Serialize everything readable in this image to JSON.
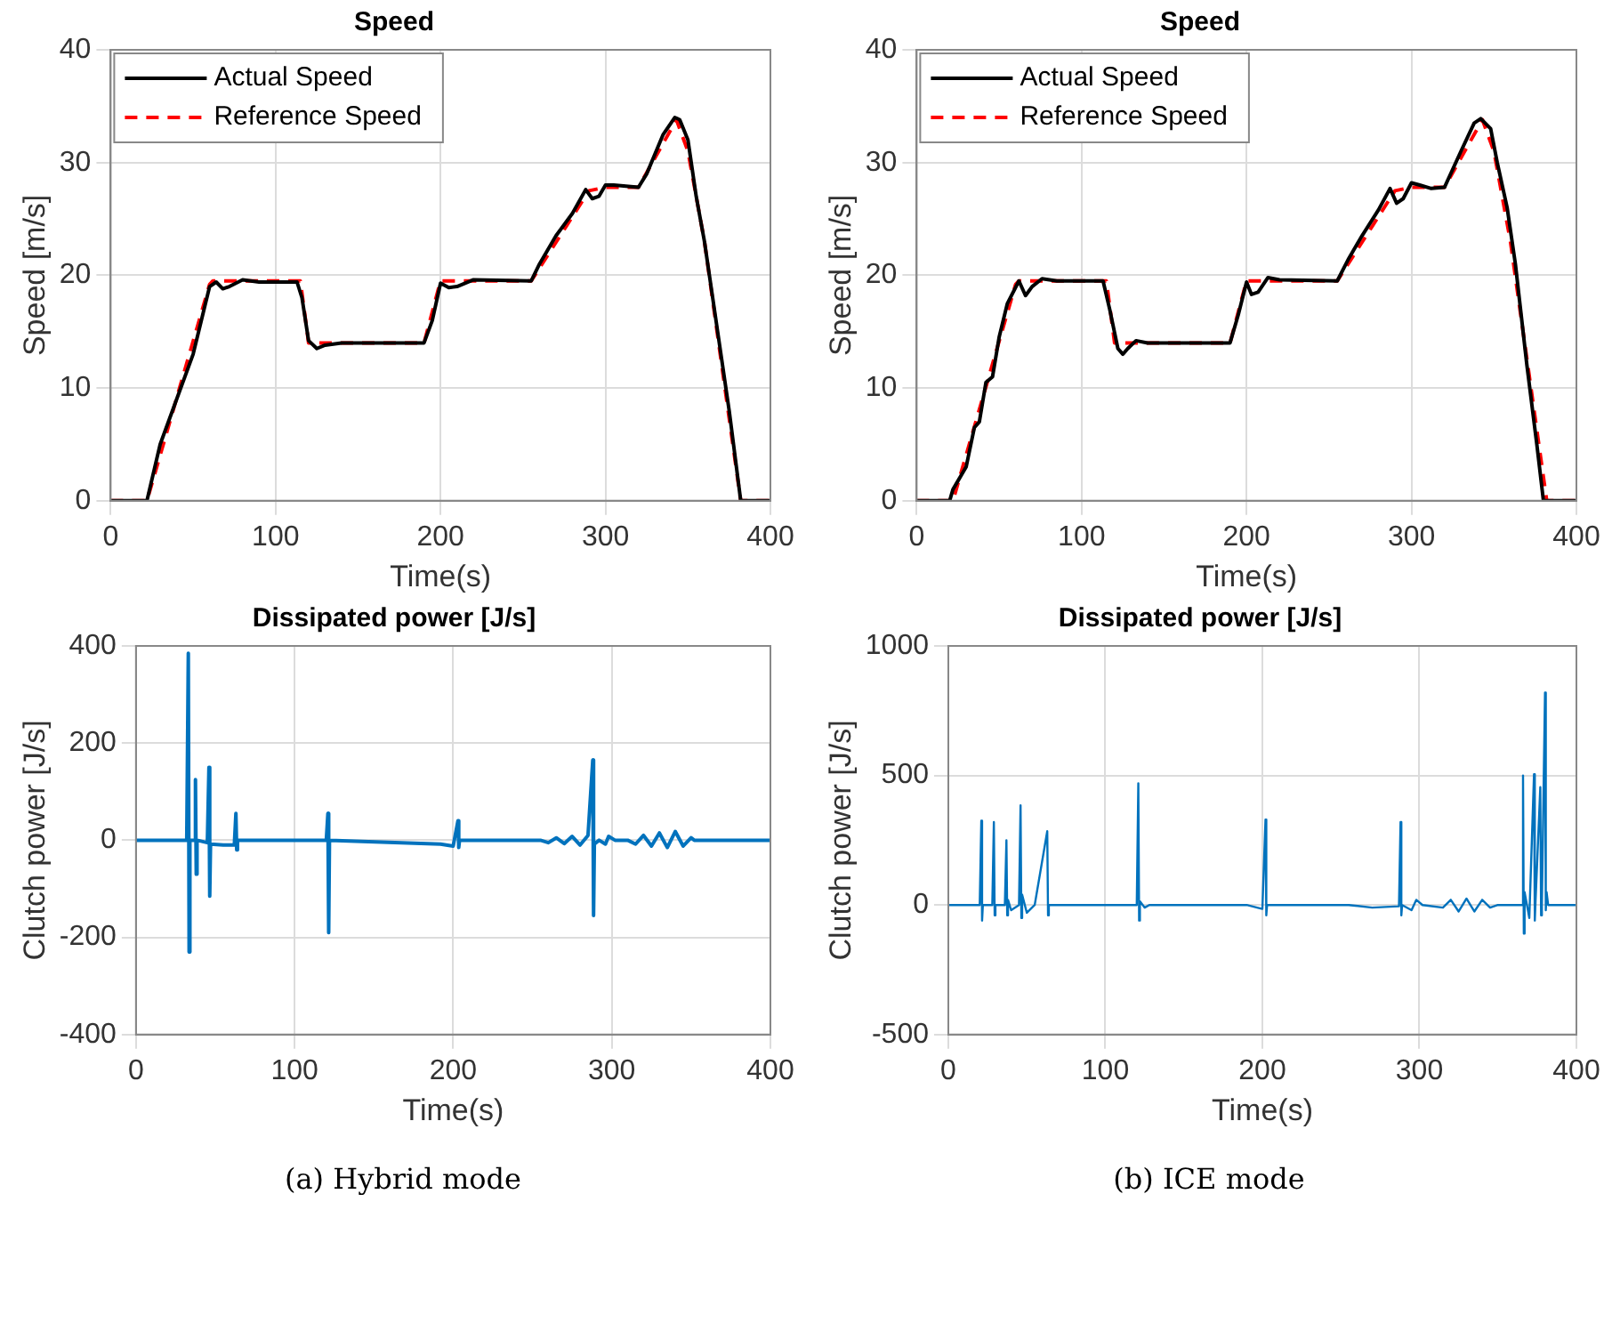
{
  "chart_data": [
    {
      "type": "line",
      "title": "Speed",
      "xlabel": "Time(s)",
      "ylabel": "Speed [m/s]",
      "xlim": [
        0,
        400
      ],
      "xticks": [
        0,
        100,
        200,
        300,
        400
      ],
      "ylim": [
        0,
        40
      ],
      "yticks": [
        0,
        10,
        20,
        30,
        40
      ],
      "grid": true,
      "legend": "top left",
      "series": [
        {
          "name": "Actual Speed",
          "color": "#000000",
          "line_style": "solid",
          "x": [
            0,
            20,
            22,
            30,
            40,
            50,
            55,
            60,
            64,
            68,
            72,
            80,
            90,
            113,
            116,
            120,
            125,
            130,
            140,
            190,
            195,
            200,
            205,
            210,
            220,
            255,
            260,
            270,
            280,
            288,
            292,
            296,
            300,
            305,
            320,
            325,
            335,
            342,
            345,
            350,
            355,
            360,
            365,
            375,
            382,
            400
          ],
          "values": [
            0,
            0,
            0,
            5,
            9,
            13,
            16,
            19,
            19.4,
            18.8,
            19,
            19.6,
            19.4,
            19.4,
            18,
            14.2,
            13.5,
            13.8,
            14,
            14,
            16,
            19.3,
            18.9,
            19,
            19.6,
            19.5,
            21,
            23.5,
            25.5,
            27.6,
            26.8,
            27,
            28,
            28,
            27.8,
            29,
            32.5,
            34,
            33.8,
            32,
            27,
            23,
            18,
            8,
            0,
            0
          ]
        },
        {
          "name": "Reference Speed",
          "color": "#ff0000",
          "line_style": "dashed",
          "x": [
            0,
            22,
            60,
            62,
            115,
            120,
            190,
            200,
            255,
            290,
            300,
            320,
            343,
            350,
            360,
            382,
            400
          ],
          "values": [
            0,
            0,
            19.2,
            19.5,
            19.5,
            14,
            14,
            19.5,
            19.5,
            27.5,
            27.8,
            27.8,
            33.8,
            31,
            23,
            0,
            0
          ]
        }
      ]
    },
    {
      "type": "line",
      "title": "Speed",
      "xlabel": "Time(s)",
      "ylabel": "Speed [m/s]",
      "xlim": [
        0,
        400
      ],
      "xticks": [
        0,
        100,
        200,
        300,
        400
      ],
      "ylim": [
        0,
        40
      ],
      "yticks": [
        0,
        10,
        20,
        30,
        40
      ],
      "grid": true,
      "legend": "top left",
      "series": [
        {
          "name": "Actual Speed",
          "color": "#000000",
          "line_style": "solid",
          "x": [
            0,
            20,
            22,
            30,
            35,
            38,
            42,
            46,
            50,
            55,
            62,
            66,
            70,
            76,
            85,
            113,
            117,
            122,
            125,
            128,
            133,
            140,
            190,
            195,
            200,
            203,
            207,
            213,
            220,
            255,
            262,
            270,
            280,
            287,
            291,
            295,
            300,
            305,
            312,
            320,
            330,
            338,
            342,
            348,
            352,
            358,
            363,
            370,
            376,
            380,
            400
          ],
          "values": [
            0,
            0,
            1,
            3,
            6.5,
            7,
            10.5,
            11,
            14.5,
            17.5,
            19.5,
            18.2,
            19,
            19.7,
            19.5,
            19.5,
            17,
            13.5,
            13,
            13.5,
            14.2,
            14,
            14,
            16.5,
            19.4,
            18.3,
            18.5,
            19.8,
            19.6,
            19.5,
            21.5,
            23.5,
            25.8,
            27.7,
            26.4,
            26.8,
            28.2,
            28,
            27.7,
            27.8,
            31,
            33.5,
            33.9,
            33,
            30,
            26,
            21,
            12,
            5,
            0,
            0
          ]
        },
        {
          "name": "Reference Speed",
          "color": "#ff0000",
          "line_style": "dashed",
          "x": [
            0,
            22,
            60,
            62,
            115,
            120,
            190,
            200,
            255,
            290,
            300,
            320,
            343,
            350,
            360,
            382,
            400
          ],
          "values": [
            0,
            0,
            19.2,
            19.5,
            19.5,
            14,
            14,
            19.5,
            19.5,
            27.5,
            27.8,
            27.8,
            33.8,
            31,
            23,
            0,
            0
          ]
        }
      ]
    },
    {
      "type": "line",
      "title": "Dissipated power [J/s]",
      "xlabel": "Time(s)",
      "ylabel": "Clutch power [J/s]",
      "xlim": [
        0,
        400
      ],
      "xticks": [
        0,
        100,
        200,
        300,
        400
      ],
      "ylim": [
        -400,
        400
      ],
      "yticks": [
        -400,
        -200,
        0,
        200,
        400
      ],
      "grid": true,
      "annotations": [
        "(a) Hybrid mode"
      ],
      "series": [
        {
          "color": "#0072bd",
          "line_style": "solid",
          "x": [
            0,
            32,
            33,
            33.5,
            34,
            37,
            37.5,
            38,
            38.5,
            45,
            46,
            46.5,
            47,
            55,
            62,
            63,
            63.5,
            64,
            120,
            121,
            121.5,
            122,
            192,
            200,
            203,
            203.5,
            204,
            255,
            260,
            265,
            270,
            275,
            280,
            285,
            288,
            288.5,
            289,
            292,
            296,
            298,
            302,
            310,
            315,
            320,
            325,
            330,
            335,
            340,
            345,
            350,
            352,
            400
          ],
          "values": [
            0,
            0,
            385,
            -230,
            0,
            0,
            125,
            -70,
            0,
            -5,
            150,
            -115,
            -8,
            -10,
            -10,
            55,
            -20,
            0,
            0,
            55,
            -190,
            0,
            -8,
            -12,
            40,
            -15,
            0,
            0,
            -5,
            5,
            -7,
            8,
            -10,
            10,
            165,
            -155,
            -8,
            0,
            -8,
            8,
            0,
            0,
            -8,
            10,
            -12,
            15,
            -15,
            18,
            -12,
            5,
            0,
            0
          ]
        }
      ]
    },
    {
      "type": "line",
      "title": "Dissipated power [J/s]",
      "xlabel": "Time(s)",
      "ylabel": "Clutch power [J/s]",
      "xlim": [
        0,
        400
      ],
      "xticks": [
        0,
        100,
        200,
        300,
        400
      ],
      "ylim": [
        -500,
        1000
      ],
      "yticks": [
        -500,
        0,
        500,
        1000
      ],
      "grid": true,
      "annotations": [
        "(b) ICE mode"
      ],
      "series": [
        {
          "color": "#0072bd",
          "line_style": "solid",
          "x": [
            0,
            20,
            21,
            21.5,
            22,
            28,
            29,
            29.5,
            30,
            36,
            37,
            37.5,
            38,
            40,
            45,
            46,
            46.5,
            47,
            50,
            55,
            63,
            63.5,
            64,
            120,
            121,
            121.5,
            122,
            125,
            128,
            190,
            200,
            202,
            202.5,
            203,
            255,
            270,
            287,
            288,
            288.5,
            289,
            295,
            298,
            302,
            315,
            320,
            325,
            330,
            335,
            340,
            345,
            350,
            365,
            366,
            366.5,
            367,
            370,
            373,
            373.5,
            374,
            377,
            377.5,
            378,
            380,
            380.5,
            381,
            382,
            400
          ],
          "values": [
            0,
            0,
            325,
            -60,
            0,
            0,
            320,
            -40,
            0,
            0,
            250,
            -40,
            20,
            -20,
            0,
            385,
            -50,
            40,
            -30,
            0,
            285,
            -40,
            0,
            0,
            470,
            -60,
            15,
            -10,
            0,
            0,
            -15,
            330,
            -40,
            0,
            0,
            -10,
            -5,
            320,
            -40,
            0,
            -20,
            20,
            0,
            -10,
            20,
            -25,
            25,
            -25,
            20,
            -10,
            0,
            0,
            500,
            -110,
            50,
            -50,
            505,
            -60,
            20,
            455,
            -40,
            0,
            820,
            -20,
            50,
            0,
            0
          ]
        }
      ]
    }
  ]
}
